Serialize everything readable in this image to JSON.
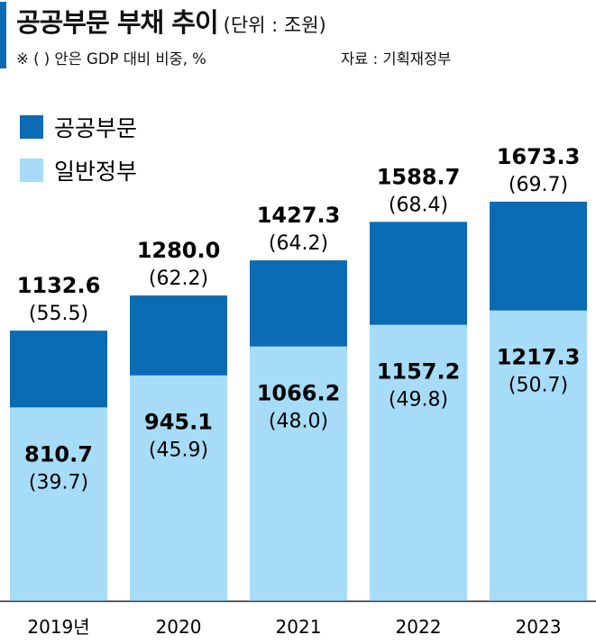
{
  "header": {
    "title": "공공부문 부채 추이",
    "unit": "(단위 : 조원)",
    "note": "※ (  ) 안은 GDP 대비 비중, %",
    "source": "자료 : 기획재정부"
  },
  "colors": {
    "public_sector": "#0b6cb4",
    "general_government": "#a6dcf7",
    "accent_bar": "#0b6cb4"
  },
  "chart_data": {
    "type": "bar",
    "categories": [
      "2019년",
      "2020",
      "2021",
      "2022",
      "2023"
    ],
    "series": [
      {
        "name": "공공부문",
        "values": [
          1132.6,
          1280.0,
          1427.3,
          1588.7,
          1673.3
        ],
        "value_labels": [
          "1132.6",
          "1280.0",
          "1427.3",
          "1588.7",
          "1673.3"
        ],
        "pct_labels": [
          "(55.5)",
          "(62.2)",
          "(64.2)",
          "(68.4)",
          "(69.7)"
        ]
      },
      {
        "name": "일반정부",
        "values": [
          810.7,
          945.1,
          1066.2,
          1157.2,
          1217.3
        ],
        "value_labels": [
          "810.7",
          "945.1",
          "1066.2",
          "1157.2",
          "1217.3"
        ],
        "pct_labels": [
          "(39.7)",
          "(45.9)",
          "(48.0)",
          "(49.8)",
          "(50.7)"
        ]
      }
    ],
    "overlay": true,
    "legend": "top-left",
    "grid": false
  }
}
